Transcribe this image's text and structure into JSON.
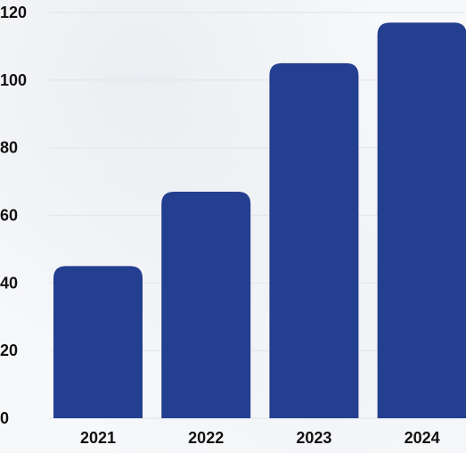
{
  "colors": {
    "bar": "#243f8f",
    "text": "#111111",
    "grid": "#e3e6ea",
    "background": "#f7f8fa"
  },
  "chart_data": {
    "type": "bar",
    "categories": [
      "2021",
      "2022",
      "2023",
      "2024"
    ],
    "values": [
      45,
      67,
      105,
      117
    ],
    "y_ticks": [
      "0",
      "20",
      "40",
      "60",
      "80",
      "100",
      "120"
    ],
    "ylim": [
      0,
      120
    ],
    "grid": true,
    "title": "",
    "xlabel": "",
    "ylabel": ""
  }
}
